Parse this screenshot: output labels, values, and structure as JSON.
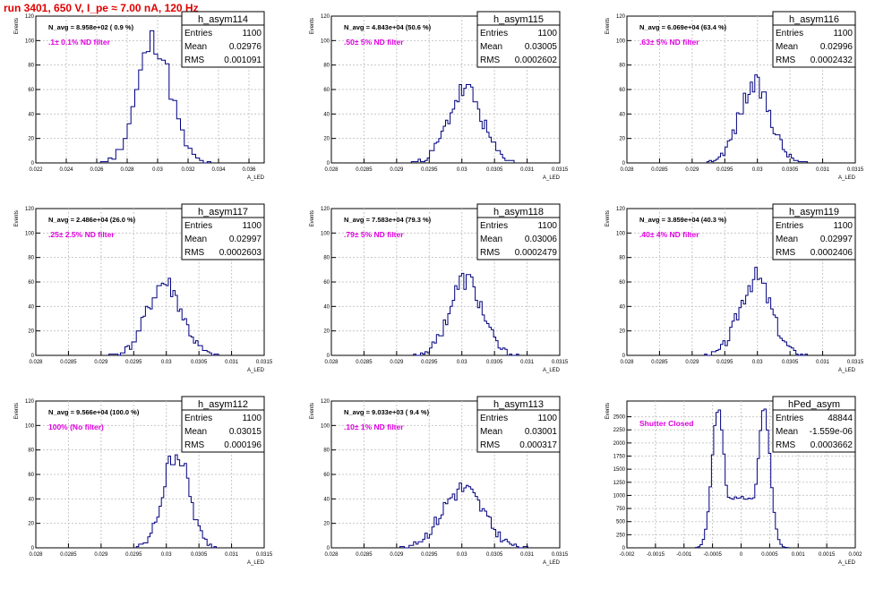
{
  "title": "run 3401,   650 V, I_pe ≈ 7.00 nA, 120 Hz",
  "ylabel": "Events",
  "xlabel": "A_LED",
  "stats_labels": {
    "entries": "Entries",
    "mean": "Mean",
    "rms": "RMS"
  },
  "colors": {
    "line": "#000080",
    "annotation": "#e000e0",
    "title": "#e00000",
    "grid": "#c8c8c8"
  },
  "chart_data": [
    {
      "type": "histogram",
      "name": "h_asym114",
      "entries": "1100",
      "mean": "0.02976",
      "rms": "0.001091",
      "navg": "N_avg = 8.958e+02 ( 0.9 %)",
      "filter": ".1± 0.1% ND filter",
      "xlim": [
        0.022,
        0.037
      ],
      "ylim": [
        0,
        120
      ],
      "xticks": [
        "0.022",
        "0.024",
        "0.026",
        "0.028",
        "0.03",
        "0.032",
        "0.034",
        "0.036"
      ],
      "yticks": [
        "0",
        "20",
        "40",
        "60",
        "80",
        "100",
        "120"
      ],
      "grid": true,
      "dist": "gauss",
      "mu": 0.02976,
      "sigma": 0.001091,
      "nbins": 60,
      "seed": 11
    },
    {
      "type": "histogram",
      "name": "h_asym115",
      "entries": "1100",
      "mean": "0.03005",
      "rms": "0.0002602",
      "navg": "N_avg = 4.843e+04 (50.6 %)",
      "filter": ".50± 5% ND filter",
      "xlim": [
        0.028,
        0.0315
      ],
      "ylim": [
        0,
        120
      ],
      "xticks": [
        "0.028",
        "0.0285",
        "0.029",
        "0.0295",
        "0.03",
        "0.0305",
        "0.031",
        "0.0315"
      ],
      "yticks": [
        "0",
        "20",
        "40",
        "60",
        "80",
        "100",
        "120"
      ],
      "grid": true,
      "dist": "gauss",
      "mu": 0.03005,
      "sigma": 0.0002602,
      "nbins": 100,
      "seed": 23
    },
    {
      "type": "histogram",
      "name": "h_asym116",
      "entries": "1100",
      "mean": "0.02996",
      "rms": "0.0002432",
      "navg": "N_avg = 6.069e+04 (63.4 %)",
      "filter": ".63± 5% ND filter",
      "xlim": [
        0.028,
        0.0315
      ],
      "ylim": [
        0,
        120
      ],
      "xticks": [
        "0.028",
        "0.0285",
        "0.029",
        "0.0295",
        "0.03",
        "0.0305",
        "0.031",
        "0.0315"
      ],
      "yticks": [
        "0",
        "20",
        "40",
        "60",
        "80",
        "100",
        "120"
      ],
      "grid": true,
      "dist": "gauss",
      "mu": 0.02996,
      "sigma": 0.0002432,
      "nbins": 100,
      "seed": 37
    },
    {
      "type": "histogram",
      "name": "h_asym117",
      "entries": "1100",
      "mean": "0.02997",
      "rms": "0.0002603",
      "navg": "N_avg = 2.486e+04 (26.0 %)",
      "filter": ".25± 2.5% ND filter",
      "xlim": [
        0.028,
        0.0315
      ],
      "ylim": [
        0,
        120
      ],
      "xticks": [
        "0.028",
        "0.0285",
        "0.029",
        "0.0295",
        "0.03",
        "0.0305",
        "0.031",
        "0.0315"
      ],
      "yticks": [
        "0",
        "20",
        "40",
        "60",
        "80",
        "100",
        "120"
      ],
      "grid": true,
      "dist": "gauss",
      "mu": 0.02997,
      "sigma": 0.0002603,
      "nbins": 100,
      "seed": 41
    },
    {
      "type": "histogram",
      "name": "h_asym118",
      "entries": "1100",
      "mean": "0.03006",
      "rms": "0.0002479",
      "navg": "N_avg = 7.583e+04 (79.3 %)",
      "filter": ".79± 5% ND filter",
      "xlim": [
        0.028,
        0.0315
      ],
      "ylim": [
        0,
        120
      ],
      "xticks": [
        "0.028",
        "0.0285",
        "0.029",
        "0.0295",
        "0.03",
        "0.0305",
        "0.031",
        "0.0315"
      ],
      "yticks": [
        "0",
        "20",
        "40",
        "60",
        "80",
        "100",
        "120"
      ],
      "grid": true,
      "dist": "gauss",
      "mu": 0.03006,
      "sigma": 0.0002479,
      "nbins": 100,
      "seed": 53
    },
    {
      "type": "histogram",
      "name": "h_asym119",
      "entries": "1100",
      "mean": "0.02997",
      "rms": "0.0002406",
      "navg": "N_avg = 3.859e+04 (40.3 %)",
      "filter": ".40± 4% ND filter",
      "xlim": [
        0.028,
        0.0315
      ],
      "ylim": [
        0,
        120
      ],
      "xticks": [
        "0.028",
        "0.0285",
        "0.029",
        "0.0295",
        "0.03",
        "0.0305",
        "0.031",
        "0.0315"
      ],
      "yticks": [
        "0",
        "20",
        "40",
        "60",
        "80",
        "100",
        "120"
      ],
      "grid": true,
      "dist": "gauss",
      "mu": 0.02997,
      "sigma": 0.0002406,
      "nbins": 100,
      "seed": 67
    },
    {
      "type": "histogram",
      "name": "h_asym112",
      "entries": "1100",
      "mean": "0.03015",
      "rms": "0.000196",
      "navg": "N_avg = 9.566e+04 (100.0 %)",
      "filter": "100% (No filter)",
      "xlim": [
        0.028,
        0.0315
      ],
      "ylim": [
        0,
        120
      ],
      "xticks": [
        "0.028",
        "0.0285",
        "0.029",
        "0.0295",
        "0.03",
        "0.0305",
        "0.031",
        "0.0315"
      ],
      "yticks": [
        "0",
        "20",
        "40",
        "60",
        "80",
        "100",
        "120"
      ],
      "grid": true,
      "dist": "gauss",
      "mu": 0.03015,
      "sigma": 0.000196,
      "nbins": 100,
      "seed": 79
    },
    {
      "type": "histogram",
      "name": "h_asym113",
      "entries": "1100",
      "mean": "0.03001",
      "rms": "0.000317",
      "navg": "N_avg = 9.033e+03 ( 9.4 %)",
      "filter": ".10± 1% ND filter",
      "xlim": [
        0.028,
        0.0315
      ],
      "ylim": [
        0,
        120
      ],
      "xticks": [
        "0.028",
        "0.0285",
        "0.029",
        "0.0295",
        "0.03",
        "0.0305",
        "0.031",
        "0.0315"
      ],
      "yticks": [
        "0",
        "20",
        "40",
        "60",
        "80",
        "100",
        "120"
      ],
      "grid": true,
      "dist": "gauss",
      "mu": 0.03001,
      "sigma": 0.000317,
      "nbins": 100,
      "seed": 83
    },
    {
      "type": "histogram",
      "name": "hPed_asym",
      "entries": "48844",
      "mean": "-1.559e-06",
      "rms": "0.0003662",
      "navg": "",
      "filter": "Shutter Closed",
      "xlim": [
        -0.002,
        0.002
      ],
      "ylim": [
        0,
        2800
      ],
      "xticks": [
        "-0.002",
        "-0.0015",
        "-0.001",
        "-0.0005",
        "0",
        "0.0005",
        "0.001",
        "0.0015",
        "0.002"
      ],
      "yticks": [
        "0",
        "250",
        "500",
        "750",
        "1000",
        "1250",
        "1500",
        "1750",
        "2000",
        "2250",
        "2500"
      ],
      "grid": true,
      "dist": "double",
      "peaks": [
        {
          "mu": -0.0004,
          "sigma": 0.00011,
          "height": 2650
        },
        {
          "mu": 0.0004,
          "sigma": 0.00011,
          "height": 2650
        }
      ],
      "valley": 950,
      "nbins": 100,
      "seed": 97
    }
  ]
}
